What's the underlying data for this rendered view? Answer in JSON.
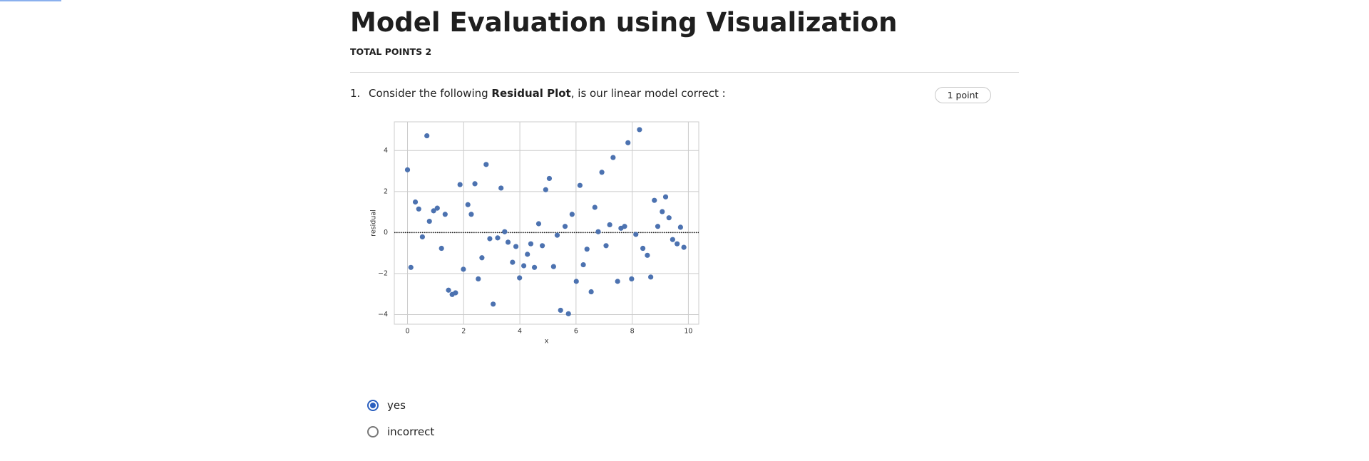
{
  "header": {
    "title": "Model Evaluation using Visualization",
    "total_points": "TOTAL POINTS 2"
  },
  "question": {
    "number": "1.",
    "text": [
      "Consider the following ",
      "Residual Plot",
      ", is our linear model correct :"
    ],
    "points": "1 point"
  },
  "chart_data": {
    "type": "scatter",
    "xlabel": "x",
    "ylabel": "residual",
    "color": "#4c72b0",
    "grid": true,
    "hline": 0,
    "xlim": [
      -0.47,
      10.37
    ],
    "ylim": [
      -4.47,
      5.4
    ],
    "xticks": [
      0,
      2,
      4,
      6,
      8,
      10
    ],
    "yticks": [
      {
        "value": -4,
        "label": "−4"
      },
      {
        "value": -2,
        "label": "−2"
      },
      0,
      2,
      4
    ],
    "x": [
      0,
      0.12,
      0.28,
      0.4,
      0.53,
      0.69,
      0.78,
      0.93,
      1.06,
      1.21,
      1.34,
      1.46,
      1.59,
      1.71,
      1.87,
      1.99,
      2.15,
      2.27,
      2.4,
      2.52,
      2.65,
      2.8,
      2.93,
      3.05,
      3.21,
      3.33,
      3.46,
      3.58,
      3.74,
      3.86,
      3.99,
      4.14,
      4.27,
      4.39,
      4.52,
      4.67,
      4.8,
      4.92,
      5.05,
      5.2,
      5.33,
      5.45,
      5.61,
      5.73,
      5.86,
      6.01,
      6.14,
      6.26,
      6.39,
      6.54,
      6.67,
      6.79,
      6.92,
      7.07,
      7.2,
      7.32,
      7.48,
      7.6,
      7.73,
      7.85,
      7.98,
      8.13,
      8.26,
      8.38,
      8.54,
      8.66,
      8.79,
      8.91,
      9.07,
      9.19,
      9.31,
      9.44,
      9.6,
      9.72,
      9.84
    ],
    "values": [
      3.06,
      -1.7,
      1.49,
      1.15,
      -0.21,
      4.72,
      0.55,
      1.06,
      1.19,
      -0.77,
      0.89,
      -2.81,
      -3.02,
      -2.94,
      2.34,
      -1.79,
      1.36,
      0.89,
      2.38,
      -2.26,
      -1.23,
      3.32,
      -0.3,
      -3.49,
      -0.26,
      2.17,
      0.04,
      -0.47,
      -1.45,
      -0.68,
      -2.21,
      -1.62,
      -1.06,
      -0.55,
      -1.7,
      0.43,
      -0.64,
      2.09,
      2.64,
      -1.66,
      -0.13,
      -3.79,
      0.3,
      -3.96,
      0.89,
      -2.38,
      2.3,
      -1.57,
      -0.81,
      -2.89,
      1.23,
      0.04,
      2.94,
      -0.64,
      0.38,
      3.66,
      -2.38,
      0.21,
      0.3,
      4.38,
      -2.26,
      -0.09,
      5.02,
      -0.77,
      -1.11,
      -2.17,
      1.57,
      0.3,
      1.02,
      1.74,
      0.72,
      -0.34,
      -0.55,
      0.26,
      -0.72
    ]
  },
  "options": [
    "yes",
    "incorrect"
  ],
  "selected": 0
}
